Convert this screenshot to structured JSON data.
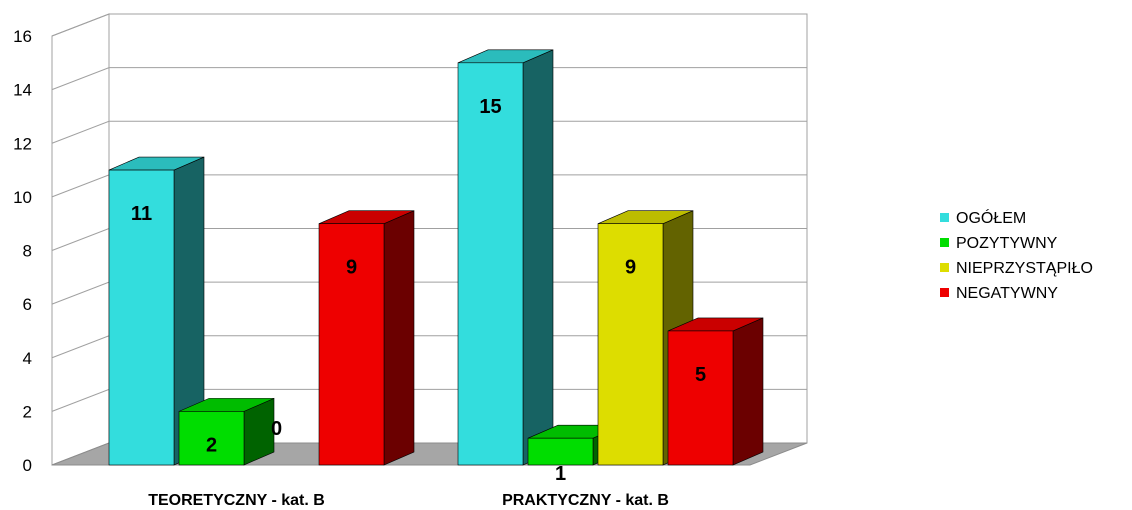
{
  "chart_data": {
    "type": "bar",
    "title": "",
    "xlabel": "",
    "ylabel": "",
    "ylim": [
      0,
      16
    ],
    "yticks": [
      0,
      2,
      4,
      6,
      8,
      10,
      12,
      14,
      16
    ],
    "grid": true,
    "legend_position": "right",
    "categories": [
      "TEORETYCZNY - kat. B",
      "PRAKTYCZNY - kat. B"
    ],
    "series": [
      {
        "name": "OGÓŁEM",
        "color": "#33dddd",
        "values": [
          11,
          15
        ]
      },
      {
        "name": "POZYTYWNY",
        "color": "#00dd00",
        "values": [
          2,
          1
        ]
      },
      {
        "name": "NIEPRZYSTĄPIŁO",
        "color": "#dddd00",
        "values": [
          0,
          9
        ]
      },
      {
        "name": "NEGATYWNY",
        "color": "#ee0000",
        "values": [
          9,
          5
        ]
      }
    ]
  }
}
